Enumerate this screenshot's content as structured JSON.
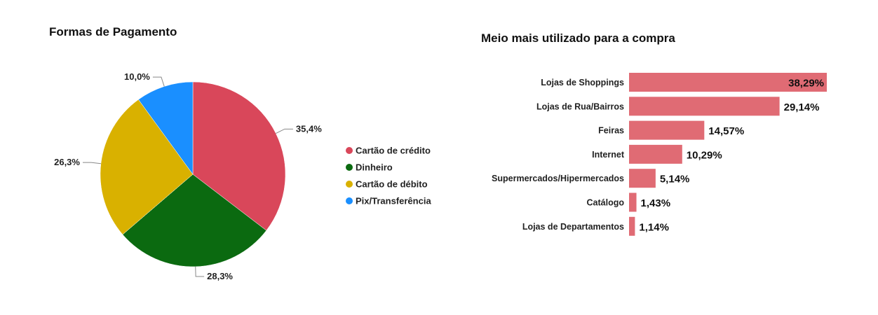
{
  "colors": {
    "background": "#ffffff",
    "bar": "#e06b74"
  },
  "chart_data": [
    {
      "type": "pie",
      "title": "Formas de Pagamento",
      "slices": [
        {
          "label": "Cartão de crédito",
          "value": 35.4,
          "display": "35,4%",
          "color": "#d9475a"
        },
        {
          "label": "Dinheiro",
          "value": 28.3,
          "display": "28,3%",
          "color": "#0b6a10"
        },
        {
          "label": "Cartão de débito",
          "value": 26.3,
          "display": "26,3%",
          "color": "#d9b100"
        },
        {
          "label": "Pix/Transferência",
          "value": 10.0,
          "display": "10,0%",
          "color": "#1a8fff"
        }
      ],
      "legend_position": "right"
    },
    {
      "type": "bar",
      "orientation": "horizontal",
      "title": "Meio mais utilizado para a compra",
      "categories": [
        "Lojas de Shoppings",
        "Lojas de Rua/Bairros",
        "Feiras",
        "Internet",
        "Supermercados/Hipermercados",
        "Catálogo",
        "Lojas de Departamentos"
      ],
      "values": [
        38.29,
        29.14,
        14.57,
        10.29,
        5.14,
        1.43,
        1.14
      ],
      "labels": [
        "38,29%",
        "29,14%",
        "14,57%",
        "10,29%",
        "5,14%",
        "1,43%",
        "1,14%"
      ],
      "xlim": [
        0,
        38.29
      ],
      "grid": false
    }
  ]
}
